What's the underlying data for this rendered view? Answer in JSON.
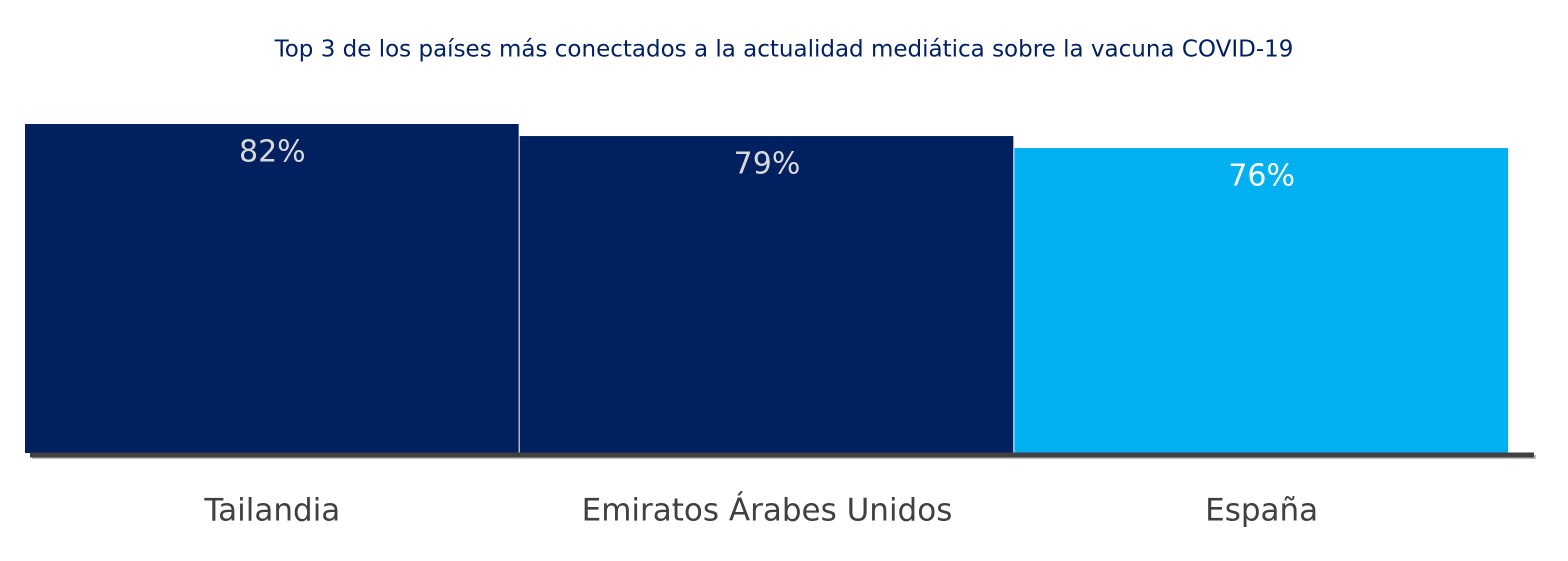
{
  "chart_data": {
    "type": "bar",
    "title": "Top 3 de los países más conectados a la actualidad mediática sobre la vacuna COVID-19",
    "categories": [
      "Tailandia",
      "Emiratos Árabes Unidos",
      "España"
    ],
    "values": [
      82,
      79,
      76
    ],
    "value_labels": [
      "82%",
      "79%",
      "76%"
    ],
    "colors": [
      "#012060",
      "#012060",
      "#00b0f0"
    ],
    "value_label_colors": [
      "#d9d9d9",
      "#d9d9d9",
      "#ffffff"
    ]
  }
}
